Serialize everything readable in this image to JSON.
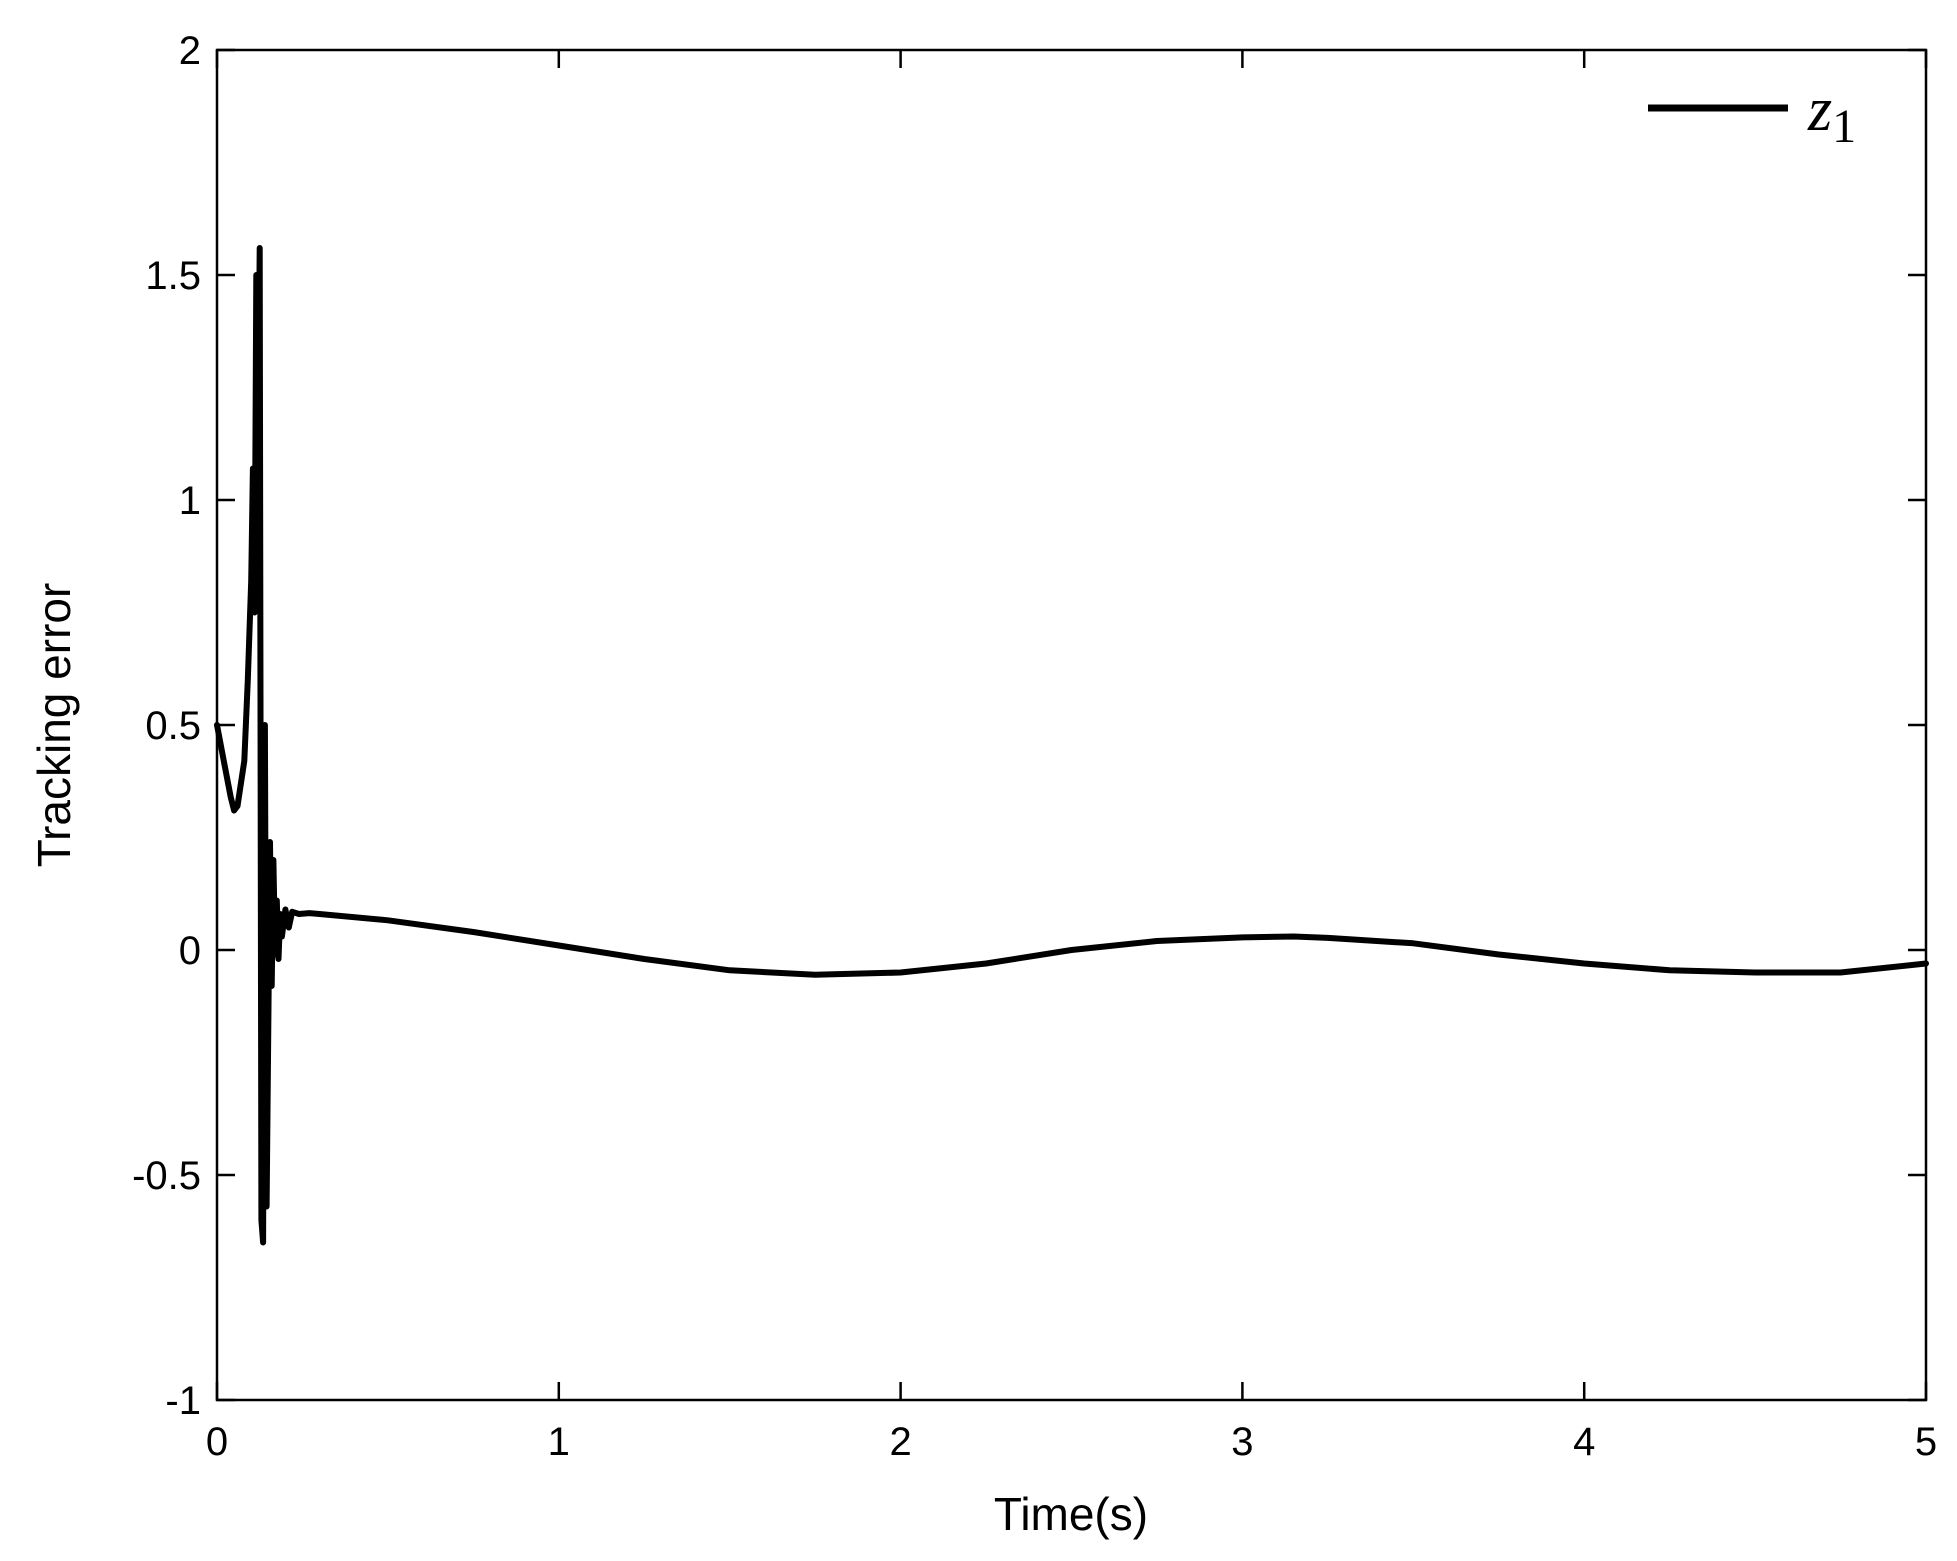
{
  "chart_data": {
    "type": "line",
    "title": "",
    "xlabel": "Time(s)",
    "ylabel": "Tracking error",
    "xlim": [
      0,
      5
    ],
    "ylim": [
      -1,
      2
    ],
    "xticks": [
      0,
      1,
      2,
      3,
      4,
      5
    ],
    "yticks": [
      -1,
      -0.5,
      0,
      0.5,
      1,
      1.5,
      2
    ],
    "xtick_labels": [
      "0",
      "1",
      "2",
      "3",
      "4",
      "5"
    ],
    "ytick_labels": [
      "-1",
      "-0.5",
      "0",
      "0.5",
      "1",
      "1.5",
      "2"
    ],
    "grid": false,
    "legend_position": "top-right",
    "series": [
      {
        "name": "z",
        "name_subscript": "1",
        "color": "#000000",
        "x": [
          0,
          0.02,
          0.04,
          0.05,
          0.06,
          0.08,
          0.09,
          0.1,
          0.105,
          0.11,
          0.115,
          0.12,
          0.125,
          0.13,
          0.135,
          0.14,
          0.145,
          0.15,
          0.155,
          0.16,
          0.165,
          0.17,
          0.175,
          0.18,
          0.185,
          0.19,
          0.2,
          0.21,
          0.22,
          0.24,
          0.27,
          0.3,
          0.5,
          0.75,
          1.0,
          1.25,
          1.5,
          1.75,
          2.0,
          2.25,
          2.5,
          2.75,
          3.0,
          3.15,
          3.25,
          3.5,
          3.75,
          4.0,
          4.25,
          4.5,
          4.75,
          5.0
        ],
        "y": [
          0.5,
          0.42,
          0.34,
          0.31,
          0.32,
          0.42,
          0.6,
          0.82,
          1.07,
          0.75,
          1.5,
          1.1,
          1.56,
          -0.6,
          -0.65,
          0.5,
          -0.57,
          -0.17,
          0.24,
          -0.08,
          0.2,
          -0.01,
          0.11,
          -0.02,
          0.08,
          0.03,
          0.09,
          0.05,
          0.085,
          0.08,
          0.082,
          0.08,
          0.066,
          0.04,
          0.01,
          -0.02,
          -0.045,
          -0.055,
          -0.05,
          -0.03,
          0.0,
          0.02,
          0.028,
          0.03,
          0.027,
          0.015,
          -0.01,
          -0.03,
          -0.045,
          -0.05,
          -0.05,
          -0.03
        ]
      }
    ]
  }
}
